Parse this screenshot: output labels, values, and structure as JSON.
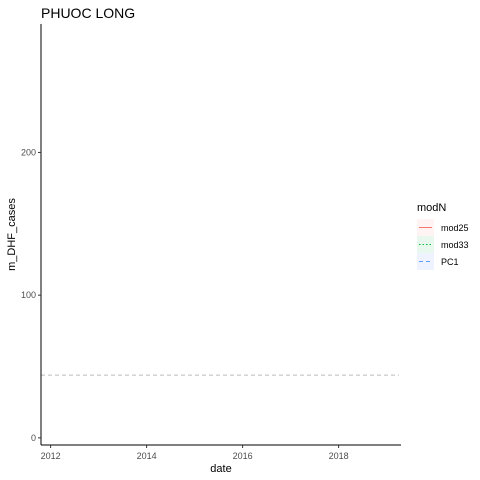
{
  "chart_data": {
    "type": "line",
    "title": "PHUOC LONG",
    "xlabel": "date",
    "ylabel": "m_DHF_cases",
    "x_ticks": [
      "2012",
      "2014",
      "2016",
      "2018"
    ],
    "y_ticks": [
      0,
      100,
      200
    ],
    "xlim": [
      2011.8,
      2019.3
    ],
    "ylim": [
      -5,
      290
    ],
    "grid": false,
    "legend": {
      "title": "modN",
      "position": "right",
      "entries": [
        {
          "name": "mod25",
          "linetype": "solid",
          "color": "#F8766D",
          "fill": "#FFF3F3"
        },
        {
          "name": "mod33",
          "linetype": "dotted",
          "color": "#00BA38",
          "fill": "#E9F8EE"
        },
        {
          "name": "PC1",
          "linetype": "dashed",
          "color": "#619CFF",
          "fill": "#EEF3FF"
        }
      ]
    },
    "reference_lines": [
      {
        "orientation": "horizontal",
        "y": 44,
        "linetype": "dashed",
        "color": "#bbbbbb"
      }
    ],
    "series": []
  }
}
